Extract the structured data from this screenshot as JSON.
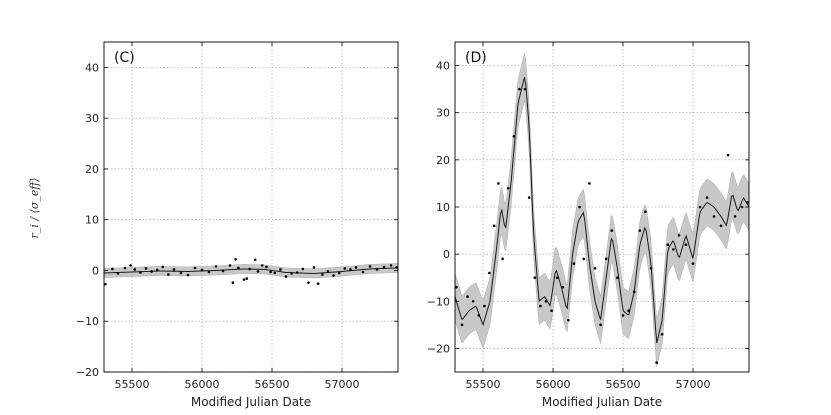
{
  "figure": {
    "ylabel": "r_i / ⟨σ_eff⟩"
  },
  "chart_data": [
    {
      "type": "line",
      "panel_label": "(C)",
      "xlabel": "Modified Julian Date",
      "ylabel": "",
      "xlim": [
        55300,
        57400
      ],
      "ylim": [
        -20,
        45
      ],
      "xticks": [
        55500,
        56000,
        56500,
        57000
      ],
      "yticks": [
        -20,
        -10,
        0,
        10,
        20,
        30,
        40
      ],
      "xtick_labels": [
        "55500",
        "56000",
        "56500",
        "57000"
      ],
      "ytick_labels": [
        "−20",
        "−10",
        "0",
        "10",
        "20",
        "30",
        "40"
      ],
      "grid": true,
      "band_halfwidth": 0.9,
      "curve": {
        "x": [
          55300,
          55500,
          55700,
          55900,
          56100,
          56300,
          56450,
          56600,
          56800,
          57000,
          57200,
          57400
        ],
        "y": [
          -0.5,
          -0.3,
          -0.1,
          -0.2,
          0.0,
          0.3,
          0.2,
          -0.4,
          -0.6,
          -0.2,
          0.3,
          0.5
        ]
      },
      "points": {
        "x": [
          55310,
          55360,
          55400,
          55450,
          55490,
          55520,
          55560,
          55600,
          55640,
          55680,
          55720,
          55760,
          55800,
          55850,
          55900,
          55950,
          56000,
          56050,
          56100,
          56150,
          56200,
          56220,
          56240,
          56260,
          56300,
          56320,
          56340,
          56380,
          56400,
          56430,
          56460,
          56490,
          56520,
          56560,
          56600,
          56640,
          56680,
          56720,
          56760,
          56800,
          56830,
          56860,
          56900,
          56940,
          56980,
          57020,
          57060,
          57100,
          57150,
          57200,
          57250,
          57300,
          57350,
          57390
        ],
        "y": [
          -2.7,
          0.3,
          -0.6,
          0.5,
          1.0,
          0.2,
          -0.4,
          0.4,
          -0.2,
          0.1,
          0.7,
          -0.8,
          0.2,
          -0.5,
          -0.9,
          0.5,
          0.1,
          -0.3,
          0.8,
          -0.1,
          1.0,
          -2.4,
          2.2,
          0.5,
          -1.8,
          -1.6,
          0.3,
          2.1,
          -0.2,
          1.0,
          0.7,
          -0.3,
          -0.5,
          0.2,
          -1.2,
          -0.6,
          -0.4,
          0.3,
          -2.4,
          0.6,
          -2.6,
          -0.8,
          -0.2,
          -1.0,
          -0.5,
          0.4,
          0.2,
          0.6,
          -0.3,
          0.8,
          0.2,
          0.7,
          1.0,
          0.6
        ]
      }
    },
    {
      "type": "line",
      "panel_label": "(D)",
      "xlabel": "Modified Julian Date",
      "ylabel": "",
      "xlim": [
        55300,
        57400
      ],
      "ylim": [
        -25,
        45
      ],
      "xticks": [
        55500,
        56000,
        56500,
        57000
      ],
      "yticks": [
        -20,
        -10,
        0,
        10,
        20,
        30,
        40
      ],
      "xtick_labels": [
        "55500",
        "56000",
        "56500",
        "57000"
      ],
      "ytick_labels": [
        "−20",
        "−10",
        "0",
        "10",
        "20",
        "30",
        "40"
      ],
      "grid": true,
      "band_halfwidth": 5,
      "curve": {
        "x": [
          55300,
          55350,
          55400,
          55450,
          55500,
          55550,
          55600,
          55630,
          55660,
          55700,
          55750,
          55800,
          55830,
          55860,
          55900,
          55940,
          55980,
          56020,
          56060,
          56100,
          56140,
          56180,
          56220,
          56260,
          56300,
          56340,
          56380,
          56420,
          56460,
          56500,
          56540,
          56580,
          56620,
          56660,
          56700,
          56740,
          56780,
          56820,
          56860,
          56900,
          56950,
          57000,
          57050,
          57100,
          57150,
          57200,
          57240,
          57280,
          57320,
          57360,
          57400
        ],
        "y": [
          -9,
          -14,
          -12,
          -11,
          -15,
          -10,
          2,
          10,
          5,
          15,
          32,
          38,
          27,
          5,
          -10,
          -9,
          -11,
          -3,
          -7,
          -12,
          0,
          7,
          9,
          -2,
          -10,
          -14,
          -5,
          4,
          -3,
          -12,
          -13,
          -8,
          2,
          6,
          -2,
          -19,
          -14,
          1,
          3,
          -1,
          4,
          -1,
          9,
          11,
          10,
          8,
          6,
          13,
          9,
          12,
          10
        ]
      },
      "points": {
        "x": [
          55310,
          55350,
          55390,
          55430,
          55470,
          55510,
          55545,
          55580,
          55610,
          55640,
          55680,
          55720,
          55760,
          55800,
          55830,
          55870,
          55910,
          55950,
          55990,
          56030,
          56070,
          56110,
          56150,
          56190,
          56220,
          56260,
          56300,
          56340,
          56380,
          56420,
          56460,
          56500,
          56540,
          56580,
          56620,
          56660,
          56700,
          56740,
          56780,
          56820,
          56860,
          56900,
          56950,
          57000,
          57050,
          57100,
          57150,
          57200,
          57250,
          57300,
          57350,
          57390
        ],
        "y": [
          -7,
          -15,
          -9,
          -10,
          -13,
          -11,
          -4,
          6,
          15,
          -1,
          14,
          25,
          35,
          35,
          12,
          -5,
          -11,
          -10,
          -12,
          -5,
          -7,
          -14,
          -2,
          10,
          -1,
          15,
          -3,
          -15,
          -1,
          5,
          -5,
          -13,
          -12,
          -8,
          5,
          9,
          -3,
          -23,
          -17,
          2,
          1,
          4,
          2,
          -2,
          10,
          12,
          8,
          6,
          21,
          8,
          10,
          11
        ]
      }
    }
  ]
}
